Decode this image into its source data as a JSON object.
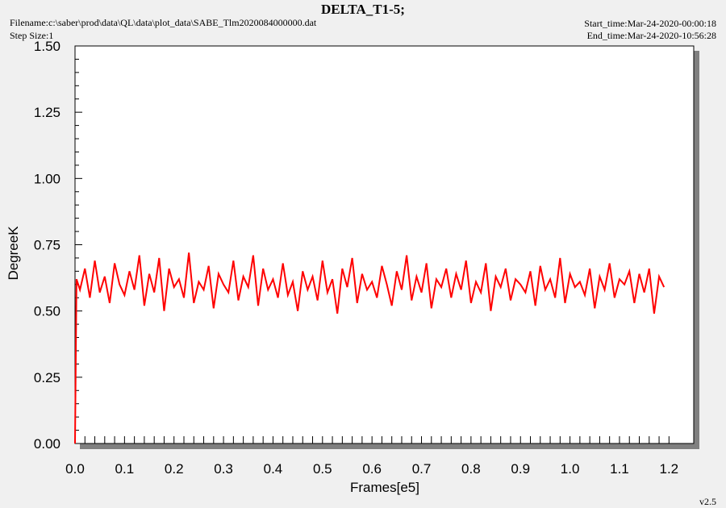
{
  "chart_data": {
    "type": "line",
    "title": "DELTA_T1-5;",
    "filename": "Filename:c:\\saber\\prod\\data\\QL\\data\\plot_data\\SABE_Tlm2020084000000.dat",
    "step_size": "Step Size:1",
    "start_time": "Start_time:Mar-24-2020-00:00:18",
    "end_time": "End_time:Mar-24-2020-10:56:28",
    "version": "v2.5",
    "xlabel": "Frames[e5]",
    "ylabel": "DegreeK",
    "xlim": [
      0,
      1.25
    ],
    "ylim": [
      0,
      1.5
    ],
    "xticks": [
      {
        "value": 0,
        "label": "0.0"
      },
      0.1,
      0.2,
      0.3,
      0.4,
      0.5,
      0.6,
      0.7,
      0.8,
      0.9,
      {
        "value": 1,
        "label": "1.0"
      },
      1.1,
      1.2
    ],
    "yticks": [
      {
        "value": 0,
        "label": "0.00"
      },
      {
        "value": 0.25,
        "label": "0.25"
      },
      {
        "value": 0.5,
        "label": "0.50"
      },
      {
        "value": 0.75,
        "label": "0.75"
      },
      {
        "value": 1,
        "label": "1.00"
      },
      {
        "value": 1.25,
        "label": "1.25"
      },
      {
        "value": 1.5,
        "label": "1.50"
      }
    ],
    "minor_per_major": 5,
    "series": [
      {
        "color": "#ff0000",
        "x": [
          0,
          0.003,
          0.01,
          0.02,
          0.03,
          0.04,
          0.05,
          0.06,
          0.07,
          0.08,
          0.09,
          0.1,
          0.11,
          0.12,
          0.13,
          0.14,
          0.15,
          0.16,
          0.17,
          0.18,
          0.19,
          0.2,
          0.21,
          0.22,
          0.23,
          0.24,
          0.25,
          0.26,
          0.27,
          0.28,
          0.29,
          0.3,
          0.31,
          0.32,
          0.33,
          0.34,
          0.35,
          0.36,
          0.37,
          0.38,
          0.39,
          0.4,
          0.41,
          0.42,
          0.43,
          0.44,
          0.45,
          0.46,
          0.47,
          0.48,
          0.49,
          0.5,
          0.51,
          0.52,
          0.53,
          0.54,
          0.55,
          0.56,
          0.57,
          0.58,
          0.59,
          0.6,
          0.61,
          0.62,
          0.63,
          0.64,
          0.65,
          0.66,
          0.67,
          0.68,
          0.69,
          0.7,
          0.71,
          0.72,
          0.73,
          0.74,
          0.75,
          0.76,
          0.77,
          0.78,
          0.79,
          0.8,
          0.81,
          0.82,
          0.83,
          0.84,
          0.85,
          0.86,
          0.87,
          0.88,
          0.89,
          0.9,
          0.91,
          0.92,
          0.93,
          0.94,
          0.95,
          0.96,
          0.97,
          0.98,
          0.99,
          1,
          1.01,
          1.02,
          1.03,
          1.04,
          1.05,
          1.06,
          1.07,
          1.08,
          1.09,
          1.1,
          1.11,
          1.12,
          1.13,
          1.14,
          1.15,
          1.16,
          1.17,
          1.18,
          1.19
        ],
        "values": [
          0,
          0.62,
          0.58,
          0.66,
          0.55,
          0.69,
          0.57,
          0.63,
          0.53,
          0.68,
          0.6,
          0.56,
          0.65,
          0.58,
          0.71,
          0.52,
          0.64,
          0.57,
          0.7,
          0.5,
          0.66,
          0.59,
          0.62,
          0.55,
          0.72,
          0.53,
          0.61,
          0.58,
          0.67,
          0.51,
          0.64,
          0.6,
          0.57,
          0.69,
          0.54,
          0.63,
          0.59,
          0.71,
          0.52,
          0.66,
          0.58,
          0.62,
          0.55,
          0.68,
          0.56,
          0.61,
          0.5,
          0.65,
          0.58,
          0.63,
          0.54,
          0.69,
          0.57,
          0.62,
          0.49,
          0.66,
          0.59,
          0.7,
          0.53,
          0.64,
          0.58,
          0.61,
          0.55,
          0.67,
          0.6,
          0.52,
          0.65,
          0.58,
          0.71,
          0.54,
          0.63,
          0.57,
          0.68,
          0.51,
          0.62,
          0.59,
          0.66,
          0.55,
          0.64,
          0.58,
          0.69,
          0.53,
          0.61,
          0.57,
          0.68,
          0.5,
          0.63,
          0.59,
          0.66,
          0.54,
          0.62,
          0.6,
          0.57,
          0.65,
          0.52,
          0.67,
          0.58,
          0.62,
          0.55,
          0.7,
          0.53,
          0.64,
          0.59,
          0.61,
          0.56,
          0.66,
          0.51,
          0.63,
          0.58,
          0.68,
          0.55,
          0.62,
          0.6,
          0.65,
          0.53,
          0.64,
          0.57,
          0.66,
          0.49,
          0.63,
          0.59
        ]
      }
    ]
  }
}
